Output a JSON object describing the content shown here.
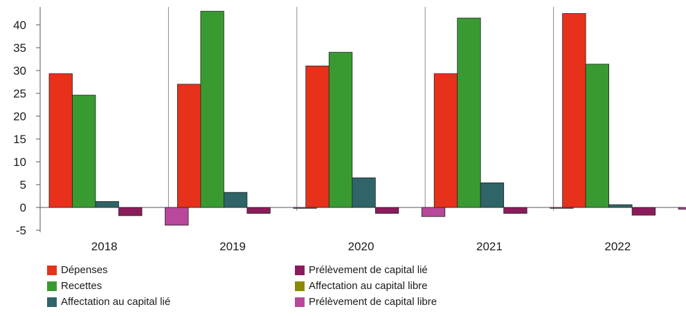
{
  "chart_data": {
    "type": "bar",
    "categories": [
      "2018",
      "2019",
      "2020",
      "2021",
      "2022"
    ],
    "series": [
      {
        "name": "Dépenses",
        "color": "#e8311a",
        "values": [
          29.3,
          27.0,
          31.0,
          29.3,
          42.5
        ]
      },
      {
        "name": "Recettes",
        "color": "#3a9a32",
        "values": [
          24.6,
          43.0,
          34.0,
          41.5,
          31.4
        ]
      },
      {
        "name": "Affectation au capital lié",
        "color": "#2f6468",
        "values": [
          1.3,
          3.3,
          6.5,
          5.4,
          0.6
        ]
      },
      {
        "name": "Prélèvement de capital lié",
        "color": "#8b1c5c",
        "values": [
          -1.8,
          -1.3,
          -1.3,
          -1.3,
          -1.7
        ]
      },
      {
        "name": "Affectation au capital libre",
        "color": "#8a8a00",
        "values": [
          0,
          0,
          0,
          0,
          0
        ]
      },
      {
        "name": "Prélèvement de capital libre",
        "color": "#b8489a",
        "values": [
          -3.9,
          -0.2,
          -2.0,
          -0.2,
          -0.4
        ]
      }
    ],
    "ylim": [
      -5,
      44
    ],
    "yticks": [
      -5,
      0,
      5,
      10,
      15,
      20,
      25,
      30,
      35,
      40
    ],
    "grid": false,
    "legend_position": "bottom",
    "title": "",
    "xlabel": "",
    "ylabel": ""
  }
}
